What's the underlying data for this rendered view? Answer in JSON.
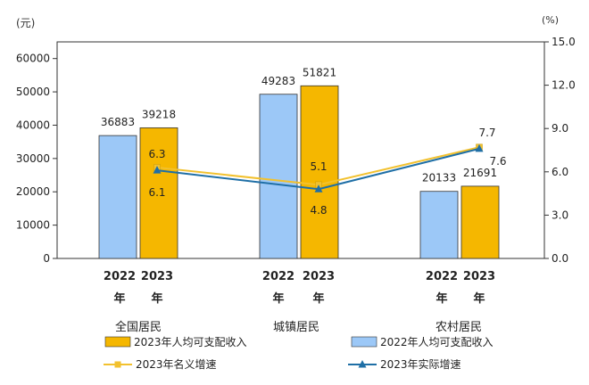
{
  "chart_data": {
    "type": "bar",
    "left_unit": "(元)",
    "right_unit": "(%)",
    "left_ticks": [
      "0",
      "10000",
      "20000",
      "30000",
      "40000",
      "50000",
      "60000"
    ],
    "right_ticks": [
      "0.0",
      "3.0",
      "6.0",
      "9.0",
      "12.0",
      "15.0"
    ],
    "left_ylim": [
      0,
      65000
    ],
    "right_ylim": [
      0,
      15
    ],
    "groups": [
      {
        "name": "全国居民",
        "years": [
          {
            "year": "2022",
            "suffix": "年"
          },
          {
            "year": "2023",
            "suffix": "年"
          }
        ]
      },
      {
        "name": "城镇居民",
        "years": [
          {
            "year": "2022",
            "suffix": "年"
          },
          {
            "year": "2023",
            "suffix": "年"
          }
        ]
      },
      {
        "name": "农村居民",
        "years": [
          {
            "year": "2022",
            "suffix": "年"
          },
          {
            "year": "2023",
            "suffix": "年"
          }
        ]
      }
    ],
    "bar_series": [
      {
        "name": "2022年人均可支配收入",
        "color": "#9cc8f7",
        "values": [
          36883,
          49283,
          20133
        ]
      },
      {
        "name": "2023年人均可支配收入",
        "color": "#f5b700",
        "values": [
          39218,
          51821,
          21691
        ]
      }
    ],
    "line_series": [
      {
        "name": "2023年名义增速",
        "color": "#f2c12e",
        "values": [
          6.3,
          5.1,
          7.7
        ],
        "value_labels": [
          "6.3",
          "5.1",
          "7.7"
        ]
      },
      {
        "name": "2023年实际增速",
        "color": "#1f6fa6",
        "values": [
          6.1,
          4.8,
          7.6
        ],
        "value_labels": [
          "6.1",
          "4.8",
          "7.6"
        ]
      }
    ],
    "grid": false
  }
}
